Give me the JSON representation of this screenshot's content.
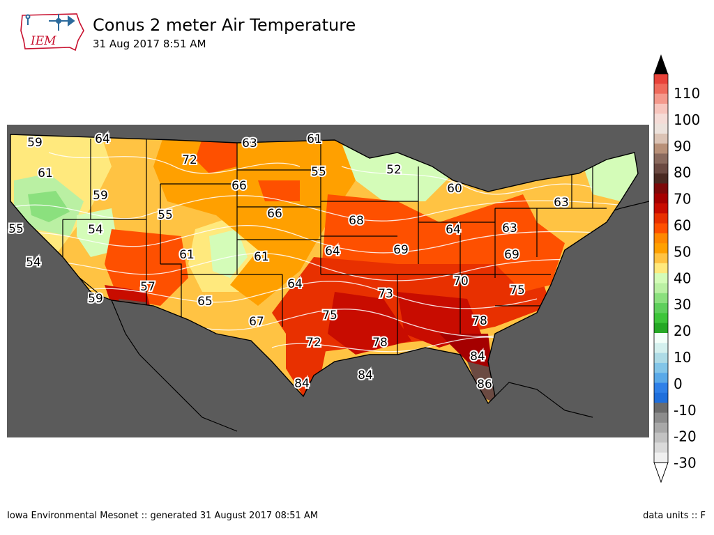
{
  "header": {
    "title": "Conus 2 meter Air Temperature",
    "subtitle": "31 Aug 2017 8:51 AM",
    "logo_text": "IEM"
  },
  "footer": {
    "left": "Iowa Environmental Mesonet :: generated 31 August 2017 08:51 AM",
    "right": "data units :: F"
  },
  "colors": {
    "background": "#ffffff",
    "ocean": "#5b5b5b",
    "state_border": "#000000",
    "contour": "#ffffff"
  },
  "colorbar": {
    "labels": [
      "110",
      "100",
      "90",
      "80",
      "70",
      "60",
      "50",
      "40",
      "30",
      "20",
      "10",
      "0",
      "-10",
      "-20",
      "-30"
    ],
    "bins_top_to_bottom": [
      "#e8433a",
      "#ef6b5c",
      "#f4998c",
      "#f7c5bd",
      "#f5dcd7",
      "#ece2dc",
      "#dbc3b5",
      "#b89078",
      "#8a6a5e",
      "#6b4a42",
      "#4a2a22",
      "#7d0a0a",
      "#a50000",
      "#c80c00",
      "#e83000",
      "#fe5000",
      "#ff8800",
      "#ffa000",
      "#ffc343",
      "#ffe97d",
      "#d4fcb8",
      "#baf0a3",
      "#8be07e",
      "#5fcf5c",
      "#3ec53a",
      "#25a825",
      "#f3fff9",
      "#d4f0ee",
      "#aedbe6",
      "#83c5e8",
      "#5aa9e8",
      "#2f80e8",
      "#1f6fdc",
      "#6b6b6b",
      "#8c8c8c",
      "#a8a8a8",
      "#c2c2c2",
      "#dadada",
      "#f0f0f0"
    ]
  },
  "station_values": [
    {
      "label": "59"
    },
    {
      "label": "64"
    },
    {
      "label": "63"
    },
    {
      "label": "61"
    },
    {
      "label": "72"
    },
    {
      "label": "61"
    },
    {
      "label": "55"
    },
    {
      "label": "52"
    },
    {
      "label": "66"
    },
    {
      "label": "60"
    },
    {
      "label": "59"
    },
    {
      "label": "55"
    },
    {
      "label": "66"
    },
    {
      "label": "63"
    },
    {
      "label": "55"
    },
    {
      "label": "54"
    },
    {
      "label": "68"
    },
    {
      "label": "64"
    },
    {
      "label": "63"
    },
    {
      "label": "54"
    },
    {
      "label": "61"
    },
    {
      "label": "61"
    },
    {
      "label": "64"
    },
    {
      "label": "69"
    },
    {
      "label": "69"
    },
    {
      "label": "57"
    },
    {
      "label": "64"
    },
    {
      "label": "70"
    },
    {
      "label": "59"
    },
    {
      "label": "65"
    },
    {
      "label": "73"
    },
    {
      "label": "75"
    },
    {
      "label": "67"
    },
    {
      "label": "75"
    },
    {
      "label": "78"
    },
    {
      "label": "72"
    },
    {
      "label": "78"
    },
    {
      "label": "84"
    },
    {
      "label": "84"
    },
    {
      "label": "84"
    },
    {
      "label": "86"
    }
  ]
}
